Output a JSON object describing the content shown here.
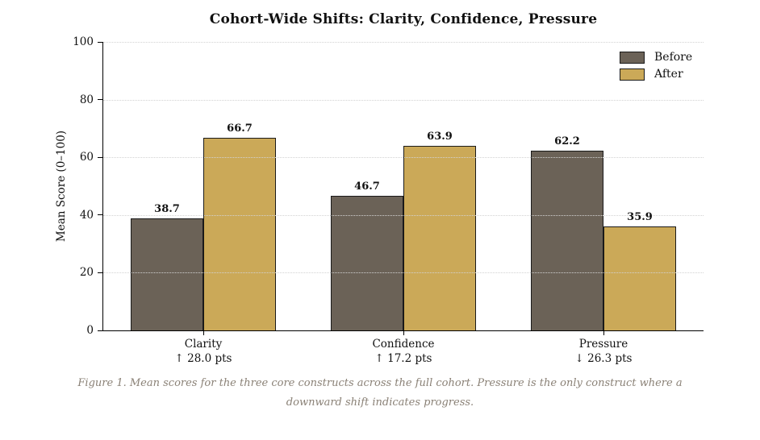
{
  "title": "Cohort-Wide Shifts: Clarity, Confidence, Pressure",
  "caption": "Figure 1. Mean scores for the three core constructs across the full cohort. Pressure is the only construct where a downward shift indicates progress.",
  "chart_data": {
    "type": "bar",
    "title": "Cohort-Wide Shifts: Clarity, Confidence, Pressure",
    "xlabel": "",
    "ylabel": "Mean Score (0–100)",
    "ylim": [
      0,
      100
    ],
    "yticks": [
      0,
      20,
      40,
      60,
      80,
      100
    ],
    "grid": "horizontal-dotted",
    "legend_position": "upper-right",
    "legend_frame": false,
    "categories": [
      "Clarity",
      "Confidence",
      "Pressure"
    ],
    "category_sublabels": [
      "↑ 28.0 pts",
      "↑ 17.2 pts",
      "↓ 26.3 pts"
    ],
    "series": [
      {
        "name": "Before",
        "color": "#6b6257",
        "values": [
          38.7,
          46.7,
          62.2
        ]
      },
      {
        "name": "After",
        "color": "#cba958",
        "values": [
          66.7,
          63.9,
          35.9
        ]
      }
    ],
    "value_labels": true,
    "colors": {
      "grid": "#d2d2d2",
      "axis": "#000000",
      "caption_text": "#8a8176",
      "bar_edge": "#1a1a1a"
    }
  }
}
